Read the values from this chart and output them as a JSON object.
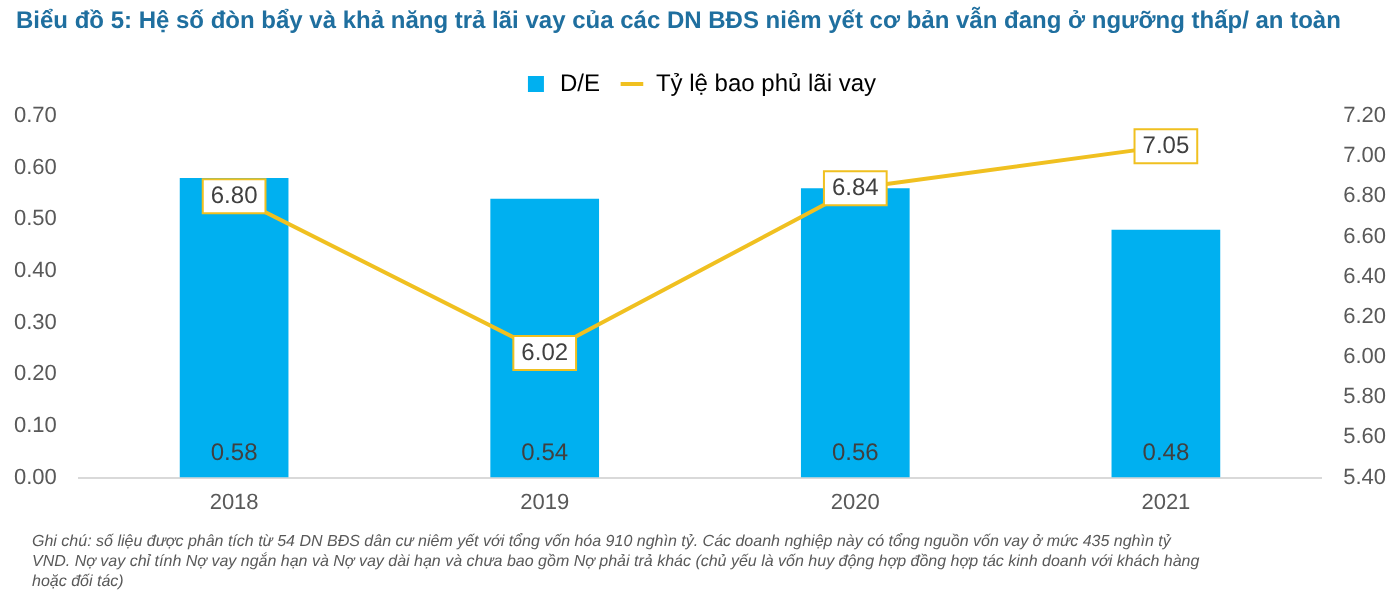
{
  "chart_data": {
    "type": "bar",
    "title": "Biểu đồ 5: Hệ số đòn bẩy và khả năng trả lãi vay của các DN BĐS niêm yết cơ bản vẫn đang ở ngưỡng thấp/ an toàn",
    "categories": [
      "2018",
      "2019",
      "2020",
      "2021"
    ],
    "series": [
      {
        "name": "D/E",
        "color": "#00b0f0",
        "values": [
          0.58,
          0.54,
          0.56,
          0.48
        ],
        "value_labels": [
          "0.58",
          "0.54",
          "0.56",
          "0.48"
        ]
      },
      {
        "name": "Tỷ lệ bao phủ lãi vay",
        "type": "line",
        "axis": "y2",
        "color": "#f0c020",
        "marker": "square",
        "values": [
          6.8,
          6.02,
          6.84,
          7.05
        ],
        "value_labels": [
          "6.80",
          "6.02",
          "6.84",
          "7.05"
        ]
      }
    ],
    "ylim": [
      0,
      0.7
    ],
    "yticks": [
      {
        "value": 0,
        "label": "0.00"
      },
      {
        "value": 0.1,
        "label": "0.10"
      },
      {
        "value": 0.2,
        "label": "0.20"
      },
      {
        "value": 0.3,
        "label": "0.30"
      },
      {
        "value": 0.4,
        "label": "0.40"
      },
      {
        "value": 0.5,
        "label": "0.50"
      },
      {
        "value": 0.6,
        "label": "0.60"
      },
      {
        "value": 0.7,
        "label": "0.70"
      }
    ],
    "y2lim": [
      5.4,
      7.2
    ],
    "y2ticks": [
      {
        "value": 5.4,
        "label": "5.40"
      },
      {
        "value": 5.6,
        "label": "5.60"
      },
      {
        "value": 5.8,
        "label": "5.80"
      },
      {
        "value": 6.0,
        "label": "6.00"
      },
      {
        "value": 6.2,
        "label": "6.20"
      },
      {
        "value": 6.4,
        "label": "6.40"
      },
      {
        "value": 6.6,
        "label": "6.60"
      },
      {
        "value": 6.8,
        "label": "6.80"
      },
      {
        "value": 7.0,
        "label": "7.00"
      },
      {
        "value": 7.2,
        "label": "7.20"
      }
    ],
    "grid": false,
    "legend": "top",
    "annotations": [
      "Ghi chú: số liệu được phân tích từ 54 DN BĐS dân cư niêm yết với tổng vốn hóa 910 nghìn tỷ. Các doanh nghiệp này có tổng nguồn vốn vay ở mức 435 nghìn tỷ VND. Nợ vay chỉ tính Nợ vay ngắn hạn và Nợ vay dài hạn và chưa bao gồm Nợ phải trả khác (chủ yếu là vốn huy động hợp đồng hợp tác kinh doanh với khách hàng hoặc đối tác)"
    ]
  }
}
